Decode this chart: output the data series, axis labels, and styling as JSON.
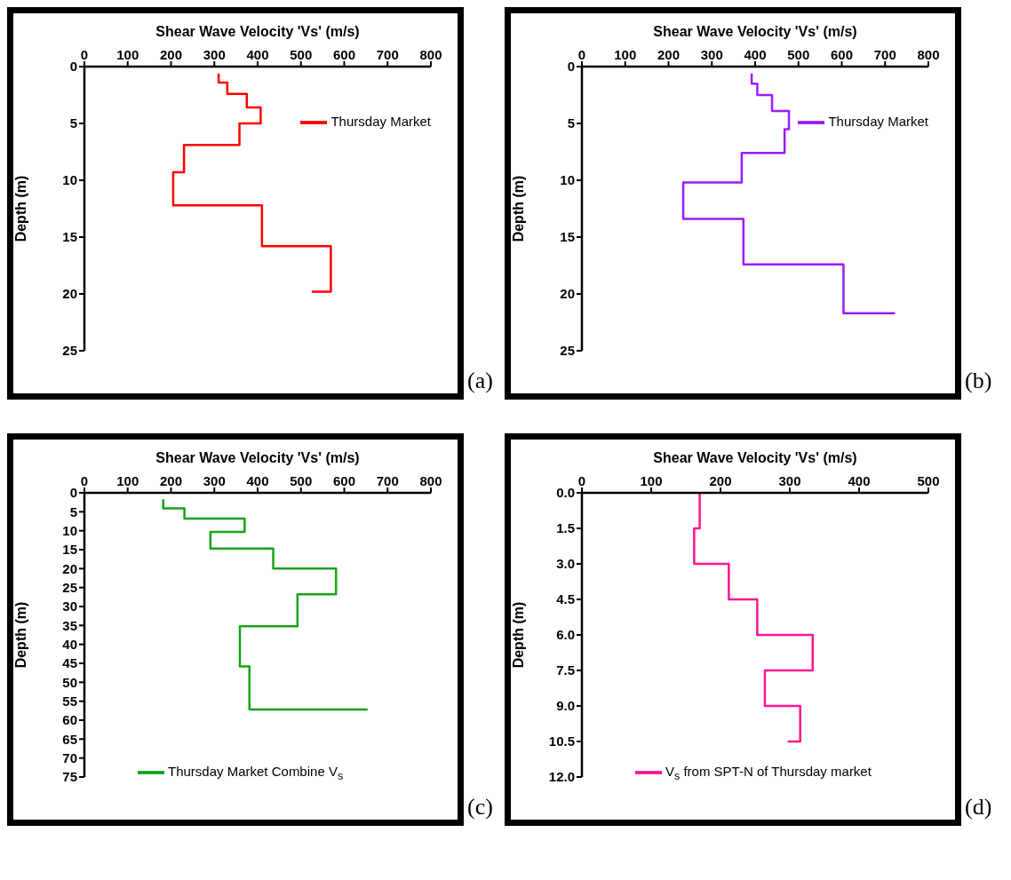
{
  "chart_data": [
    {
      "type": "line",
      "xlabel": "Shear Wave Velocity 'Vs' (m/s)",
      "ylabel": "Depth (m)",
      "xlim": [
        0,
        800
      ],
      "xticks": [
        0,
        100,
        200,
        300,
        400,
        500,
        600,
        700,
        800
      ],
      "ylim": [
        25,
        0
      ],
      "yticks": [
        0,
        5,
        10,
        15,
        20,
        25
      ],
      "grid": false,
      "legend": "top right",
      "marker": "none",
      "line_style": "solid",
      "annotations": [
        "(a)"
      ],
      "series": [
        {
          "name": "Thursday Market",
          "color": "#ff0000",
          "x": [
            310,
            310,
            330,
            330,
            375,
            375,
            407,
            407,
            358,
            358,
            230,
            230,
            205,
            205,
            410,
            410,
            569,
            569,
            525
          ],
          "values": [
            0.6,
            1.4,
            1.4,
            2.4,
            2.4,
            3.6,
            3.6,
            5.0,
            5.0,
            6.9,
            6.9,
            9.3,
            9.3,
            12.2,
            12.2,
            15.8,
            15.8,
            19.8,
            19.8
          ]
        }
      ]
    },
    {
      "type": "line",
      "xlabel": "Shear Wave Velocity 'Vs' (m/s)",
      "ylabel": "Depth (m)",
      "xlim": [
        0,
        800
      ],
      "xticks": [
        0,
        100,
        200,
        300,
        400,
        500,
        600,
        700,
        800
      ],
      "ylim": [
        25,
        0
      ],
      "yticks": [
        0,
        5,
        10,
        15,
        20,
        25
      ],
      "grid": false,
      "legend": "top right",
      "marker": "none",
      "line_style": "solid",
      "annotations": [
        "(b)"
      ],
      "series": [
        {
          "name": "Thursday Market",
          "color": "#9b1bff",
          "x": [
            392,
            392,
            405,
            405,
            439,
            439,
            478,
            478,
            468,
            468,
            369,
            369,
            234,
            234,
            373,
            373,
            604,
            604,
            723
          ],
          "values": [
            0.6,
            1.5,
            1.5,
            2.5,
            2.5,
            3.9,
            3.9,
            5.5,
            5.5,
            7.6,
            7.6,
            10.2,
            10.2,
            13.4,
            13.4,
            17.4,
            17.4,
            21.7,
            21.7
          ]
        }
      ]
    },
    {
      "type": "line",
      "xlabel": "Shear Wave Velocity 'Vs' (m/s)",
      "ylabel": "Depth (m)",
      "xlim": [
        0,
        800
      ],
      "xticks": [
        0,
        100,
        200,
        300,
        400,
        500,
        600,
        700,
        800
      ],
      "ylim": [
        75,
        0
      ],
      "yticks": [
        0,
        5,
        10,
        15,
        20,
        25,
        30,
        35,
        40,
        45,
        50,
        55,
        60,
        65,
        70,
        75
      ],
      "grid": false,
      "legend": "bottom",
      "marker": "none",
      "line_style": "solid",
      "annotations": [
        "(c)"
      ],
      "series": [
        {
          "name": "Thursday Market Combine V$_{s}$",
          "color": "#17a317",
          "x": [
            182,
            182,
            231,
            231,
            370,
            370,
            291,
            291,
            436,
            436,
            581,
            581,
            492,
            492,
            359,
            359,
            381,
            381,
            654
          ],
          "values": [
            1.7,
            4.1,
            4.1,
            6.8,
            6.8,
            10.3,
            10.3,
            14.7,
            14.7,
            20.0,
            20.0,
            26.8,
            26.8,
            35.2,
            35.2,
            45.8,
            45.8,
            57.2,
            57.2
          ]
        }
      ]
    },
    {
      "type": "line",
      "xlabel": "Shear Wave Velocity 'Vs' (m/s)",
      "ylabel": "Depth (m)",
      "xlim": [
        0,
        500
      ],
      "xticks": [
        0,
        100,
        200,
        300,
        400,
        500
      ],
      "ylim": [
        12,
        0
      ],
      "yticks": [
        {
          "value": 0,
          "label": "0.0"
        },
        1.5,
        {
          "value": 3,
          "label": "3.0"
        },
        4.5,
        {
          "value": 6,
          "label": "6.0"
        },
        7.5,
        {
          "value": 9,
          "label": "9.0"
        },
        10.5,
        {
          "value": 12,
          "label": "12.0"
        }
      ],
      "grid": false,
      "legend": "bottom",
      "marker": "none",
      "line_style": "solid",
      "annotations": [
        "(d)"
      ],
      "series": [
        {
          "name": "V$_{s}$ from SPT-N of Thursday market",
          "color": "#ff1493",
          "x": [
            170,
            170,
            162,
            162,
            212,
            212,
            253,
            253,
            333,
            333,
            264,
            264,
            315,
            315,
            297
          ],
          "values": [
            0,
            1.5,
            1.5,
            3.0,
            3.0,
            4.5,
            4.5,
            6.0,
            6.0,
            7.5,
            7.5,
            9.0,
            9.0,
            10.5,
            10.5
          ]
        }
      ]
    }
  ]
}
